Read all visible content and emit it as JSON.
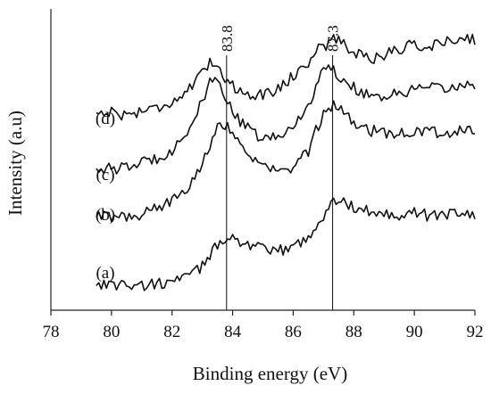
{
  "chart_data": {
    "type": "line",
    "xlabel": "Binding energy (eV)",
    "ylabel": "Intensity (a.u)",
    "xlim": [
      78,
      92
    ],
    "x_ticks": [
      78,
      80,
      82,
      84,
      86,
      88,
      90,
      92
    ],
    "y_ticks": "none",
    "grid": false,
    "legend": "none",
    "reference_lines": [
      {
        "x": 83.8,
        "label": "83.8"
      },
      {
        "x": 87.3,
        "label": "87.3"
      }
    ],
    "x": [
      79.5,
      80.0,
      80.5,
      81.0,
      81.5,
      82.0,
      82.5,
      83.0,
      83.3,
      83.6,
      83.9,
      84.2,
      84.6,
      85.0,
      85.5,
      86.0,
      86.5,
      86.8,
      87.1,
      87.4,
      87.8,
      88.2,
      88.6,
      89.0,
      89.5,
      90.0,
      90.5,
      91.0,
      91.5,
      92.0
    ],
    "series": [
      {
        "name": "(a)",
        "color": "#111111",
        "values": [
          0.98,
          0.95,
          0.93,
          0.9,
          0.95,
          1.05,
          1.2,
          1.6,
          2.1,
          2.55,
          2.7,
          2.55,
          2.35,
          2.2,
          2.15,
          2.3,
          2.7,
          3.1,
          3.6,
          4.05,
          3.85,
          3.7,
          3.6,
          3.55,
          3.5,
          3.55,
          3.45,
          3.5,
          3.6,
          3.45
        ]
      },
      {
        "name": "(b)",
        "color": "#111111",
        "values": [
          3.45,
          3.4,
          3.4,
          3.5,
          3.7,
          4.0,
          4.5,
          5.4,
          6.2,
          6.85,
          6.7,
          6.1,
          5.6,
          5.25,
          5.05,
          5.2,
          5.8,
          6.7,
          7.3,
          7.55,
          7.1,
          6.7,
          6.55,
          6.5,
          6.45,
          6.5,
          6.55,
          6.45,
          6.55,
          6.6
        ]
      },
      {
        "name": "(c)",
        "color": "#111111",
        "values": [
          5.2,
          5.15,
          5.2,
          5.4,
          5.55,
          5.85,
          6.5,
          7.6,
          8.4,
          8.25,
          7.5,
          6.9,
          6.55,
          6.25,
          6.3,
          6.7,
          7.5,
          8.3,
          8.95,
          8.7,
          8.25,
          8.0,
          7.85,
          7.8,
          7.9,
          8.05,
          8.1,
          8.05,
          8.2,
          8.25
        ]
      },
      {
        "name": "(d)",
        "color": "#111111",
        "values": [
          7.2,
          7.25,
          7.1,
          7.3,
          7.4,
          7.6,
          8.0,
          8.6,
          9.1,
          8.8,
          8.25,
          8.05,
          7.9,
          7.85,
          8.1,
          8.55,
          9.05,
          9.55,
          9.7,
          9.95,
          9.55,
          9.35,
          9.2,
          9.3,
          9.55,
          9.7,
          9.6,
          9.8,
          9.95,
          9.9
        ]
      }
    ]
  }
}
